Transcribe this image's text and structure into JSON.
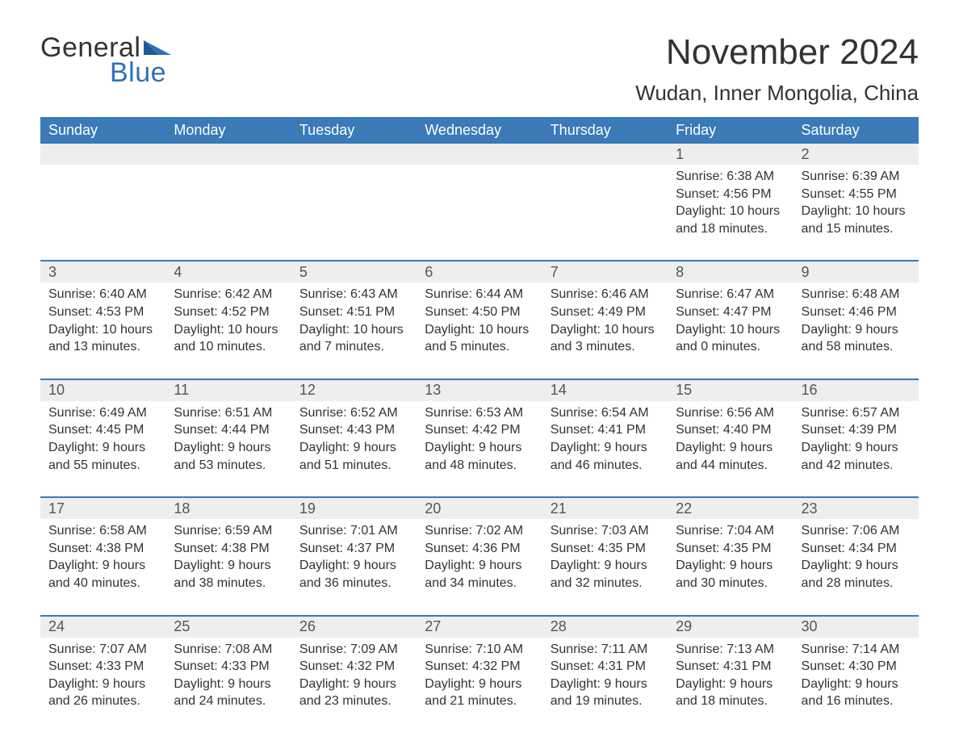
{
  "logo": {
    "text1": "General",
    "text2": "Blue",
    "flag_color": "#2f72b8"
  },
  "title": "November 2024",
  "location": "Wudan, Inner Mongolia, China",
  "colors": {
    "header_bg": "#3a7ab8",
    "header_text": "#ffffff",
    "rule": "#3a7ab8",
    "daynum_bg": "#eeeeee",
    "daynum_text": "#555555",
    "body_text": "#333333",
    "page_bg": "#ffffff",
    "logo_blue": "#2f72b8"
  },
  "typography": {
    "month_title_fontsize": 44,
    "location_fontsize": 26,
    "weekday_fontsize": 18,
    "daynum_fontsize": 18,
    "cell_fontsize": 16,
    "logo_fontsize": 34
  },
  "weekdays": [
    "Sunday",
    "Monday",
    "Tuesday",
    "Wednesday",
    "Thursday",
    "Friday",
    "Saturday"
  ],
  "weeks": [
    [
      null,
      null,
      null,
      null,
      null,
      {
        "n": "1",
        "sunrise": "Sunrise: 6:38 AM",
        "sunset": "Sunset: 4:56 PM",
        "daylight": "Daylight: 10 hours and 18 minutes."
      },
      {
        "n": "2",
        "sunrise": "Sunrise: 6:39 AM",
        "sunset": "Sunset: 4:55 PM",
        "daylight": "Daylight: 10 hours and 15 minutes."
      }
    ],
    [
      {
        "n": "3",
        "sunrise": "Sunrise: 6:40 AM",
        "sunset": "Sunset: 4:53 PM",
        "daylight": "Daylight: 10 hours and 13 minutes."
      },
      {
        "n": "4",
        "sunrise": "Sunrise: 6:42 AM",
        "sunset": "Sunset: 4:52 PM",
        "daylight": "Daylight: 10 hours and 10 minutes."
      },
      {
        "n": "5",
        "sunrise": "Sunrise: 6:43 AM",
        "sunset": "Sunset: 4:51 PM",
        "daylight": "Daylight: 10 hours and 7 minutes."
      },
      {
        "n": "6",
        "sunrise": "Sunrise: 6:44 AM",
        "sunset": "Sunset: 4:50 PM",
        "daylight": "Daylight: 10 hours and 5 minutes."
      },
      {
        "n": "7",
        "sunrise": "Sunrise: 6:46 AM",
        "sunset": "Sunset: 4:49 PM",
        "daylight": "Daylight: 10 hours and 3 minutes."
      },
      {
        "n": "8",
        "sunrise": "Sunrise: 6:47 AM",
        "sunset": "Sunset: 4:47 PM",
        "daylight": "Daylight: 10 hours and 0 minutes."
      },
      {
        "n": "9",
        "sunrise": "Sunrise: 6:48 AM",
        "sunset": "Sunset: 4:46 PM",
        "daylight": "Daylight: 9 hours and 58 minutes."
      }
    ],
    [
      {
        "n": "10",
        "sunrise": "Sunrise: 6:49 AM",
        "sunset": "Sunset: 4:45 PM",
        "daylight": "Daylight: 9 hours and 55 minutes."
      },
      {
        "n": "11",
        "sunrise": "Sunrise: 6:51 AM",
        "sunset": "Sunset: 4:44 PM",
        "daylight": "Daylight: 9 hours and 53 minutes."
      },
      {
        "n": "12",
        "sunrise": "Sunrise: 6:52 AM",
        "sunset": "Sunset: 4:43 PM",
        "daylight": "Daylight: 9 hours and 51 minutes."
      },
      {
        "n": "13",
        "sunrise": "Sunrise: 6:53 AM",
        "sunset": "Sunset: 4:42 PM",
        "daylight": "Daylight: 9 hours and 48 minutes."
      },
      {
        "n": "14",
        "sunrise": "Sunrise: 6:54 AM",
        "sunset": "Sunset: 4:41 PM",
        "daylight": "Daylight: 9 hours and 46 minutes."
      },
      {
        "n": "15",
        "sunrise": "Sunrise: 6:56 AM",
        "sunset": "Sunset: 4:40 PM",
        "daylight": "Daylight: 9 hours and 44 minutes."
      },
      {
        "n": "16",
        "sunrise": "Sunrise: 6:57 AM",
        "sunset": "Sunset: 4:39 PM",
        "daylight": "Daylight: 9 hours and 42 minutes."
      }
    ],
    [
      {
        "n": "17",
        "sunrise": "Sunrise: 6:58 AM",
        "sunset": "Sunset: 4:38 PM",
        "daylight": "Daylight: 9 hours and 40 minutes."
      },
      {
        "n": "18",
        "sunrise": "Sunrise: 6:59 AM",
        "sunset": "Sunset: 4:38 PM",
        "daylight": "Daylight: 9 hours and 38 minutes."
      },
      {
        "n": "19",
        "sunrise": "Sunrise: 7:01 AM",
        "sunset": "Sunset: 4:37 PM",
        "daylight": "Daylight: 9 hours and 36 minutes."
      },
      {
        "n": "20",
        "sunrise": "Sunrise: 7:02 AM",
        "sunset": "Sunset: 4:36 PM",
        "daylight": "Daylight: 9 hours and 34 minutes."
      },
      {
        "n": "21",
        "sunrise": "Sunrise: 7:03 AM",
        "sunset": "Sunset: 4:35 PM",
        "daylight": "Daylight: 9 hours and 32 minutes."
      },
      {
        "n": "22",
        "sunrise": "Sunrise: 7:04 AM",
        "sunset": "Sunset: 4:35 PM",
        "daylight": "Daylight: 9 hours and 30 minutes."
      },
      {
        "n": "23",
        "sunrise": "Sunrise: 7:06 AM",
        "sunset": "Sunset: 4:34 PM",
        "daylight": "Daylight: 9 hours and 28 minutes."
      }
    ],
    [
      {
        "n": "24",
        "sunrise": "Sunrise: 7:07 AM",
        "sunset": "Sunset: 4:33 PM",
        "daylight": "Daylight: 9 hours and 26 minutes."
      },
      {
        "n": "25",
        "sunrise": "Sunrise: 7:08 AM",
        "sunset": "Sunset: 4:33 PM",
        "daylight": "Daylight: 9 hours and 24 minutes."
      },
      {
        "n": "26",
        "sunrise": "Sunrise: 7:09 AM",
        "sunset": "Sunset: 4:32 PM",
        "daylight": "Daylight: 9 hours and 23 minutes."
      },
      {
        "n": "27",
        "sunrise": "Sunrise: 7:10 AM",
        "sunset": "Sunset: 4:32 PM",
        "daylight": "Daylight: 9 hours and 21 minutes."
      },
      {
        "n": "28",
        "sunrise": "Sunrise: 7:11 AM",
        "sunset": "Sunset: 4:31 PM",
        "daylight": "Daylight: 9 hours and 19 minutes."
      },
      {
        "n": "29",
        "sunrise": "Sunrise: 7:13 AM",
        "sunset": "Sunset: 4:31 PM",
        "daylight": "Daylight: 9 hours and 18 minutes."
      },
      {
        "n": "30",
        "sunrise": "Sunrise: 7:14 AM",
        "sunset": "Sunset: 4:30 PM",
        "daylight": "Daylight: 9 hours and 16 minutes."
      }
    ]
  ]
}
